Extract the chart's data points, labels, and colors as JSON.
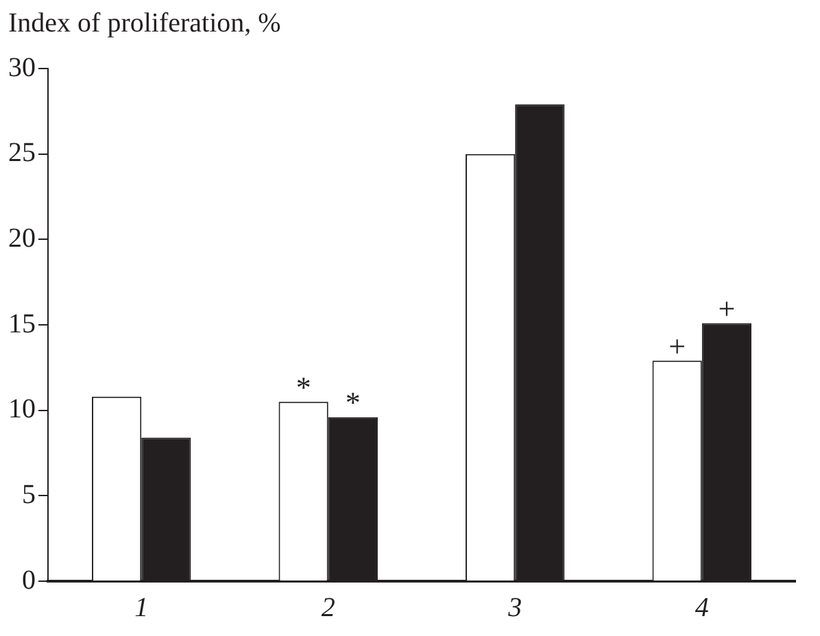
{
  "chart_data": {
    "type": "bar",
    "ylabel": "Index of proliferation, %",
    "categories": [
      "1",
      "2",
      "3",
      "4"
    ],
    "series": [
      {
        "color": "#ffffff",
        "values": [
          10.8,
          10.5,
          25.0,
          12.9
        ]
      },
      {
        "color": "#231f20",
        "values": [
          8.4,
          9.6,
          27.9,
          15.1
        ]
      }
    ],
    "ylim": [
      0,
      30
    ],
    "yticks": [
      0,
      5,
      10,
      15,
      20,
      25,
      30
    ],
    "grid": false,
    "legend": false,
    "annotations": [
      {
        "text": "*",
        "x": "2",
        "y": 10.5
      },
      {
        "text": "*",
        "x": "2",
        "y": 9.6
      },
      {
        "text": "+",
        "x": "4",
        "y": 12.9
      },
      {
        "text": "+",
        "x": "4",
        "y": 15.1
      }
    ]
  }
}
